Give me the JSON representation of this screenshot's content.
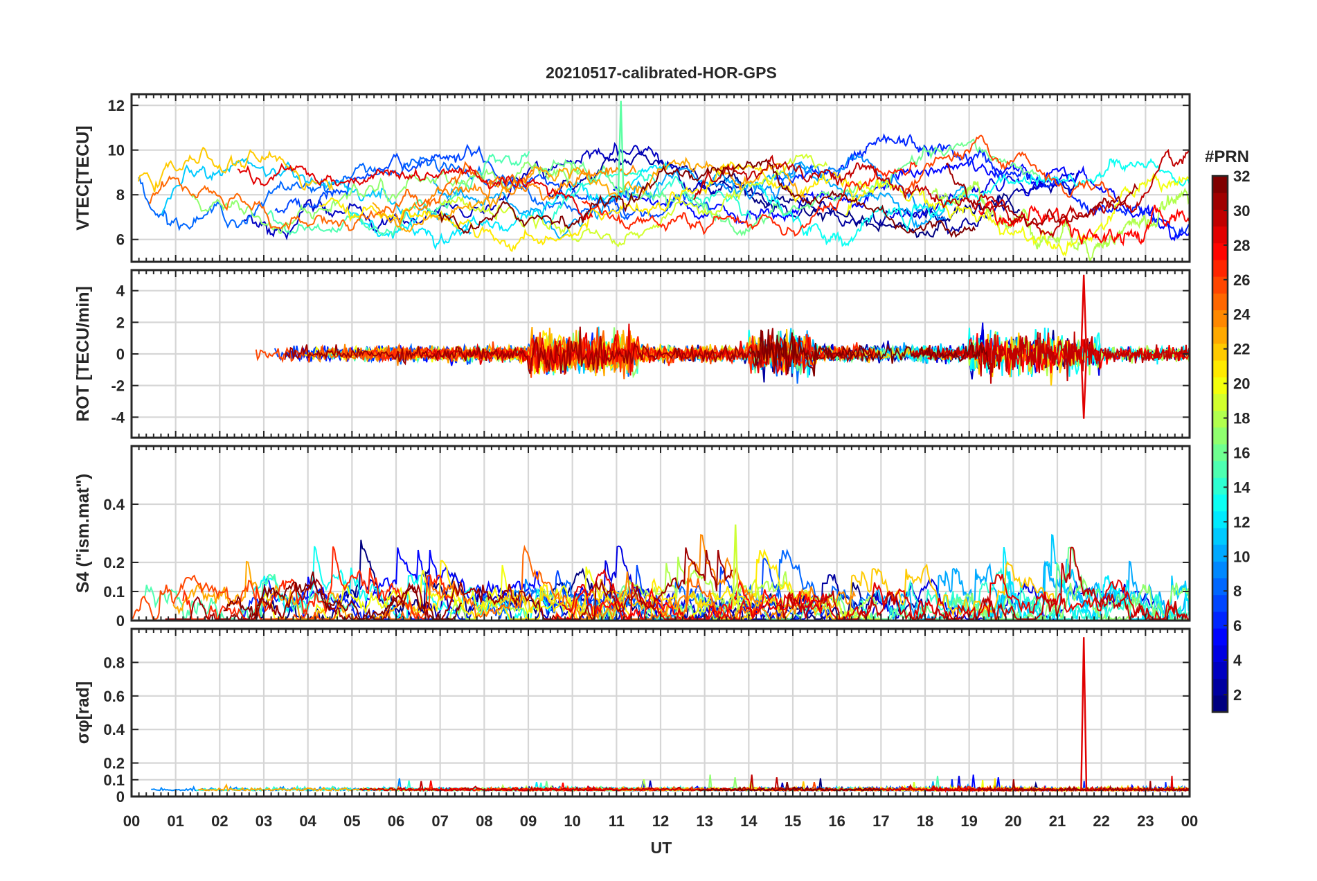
{
  "chart_data": {
    "type": "line",
    "title": "20210517-calibrated-HOR-GPS",
    "xlabel": "UT",
    "x_tick_labels": [
      "00",
      "01",
      "02",
      "03",
      "04",
      "05",
      "06",
      "07",
      "08",
      "09",
      "10",
      "11",
      "12",
      "13",
      "14",
      "15",
      "16",
      "17",
      "18",
      "19",
      "20",
      "21",
      "22",
      "23",
      "00"
    ],
    "xlim": [
      0,
      24
    ],
    "panels": [
      {
        "id": "vtec",
        "ylabel": "VTEC[TECU]",
        "ylim": [
          5,
          12.5
        ],
        "yticks": [
          6,
          8,
          10,
          12
        ],
        "ytick_labels": [
          "6",
          "8",
          "10",
          "12"
        ],
        "baseline": 8,
        "spread": 1.3
      },
      {
        "id": "rot",
        "ylabel": "ROT [TECU/min]",
        "ylim": [
          -5.3,
          5.3
        ],
        "yticks": [
          -4,
          -2,
          0,
          2,
          4
        ],
        "ytick_labels": [
          "-4",
          "-2",
          "0",
          "2",
          "4"
        ],
        "baseline": 0,
        "spread": 0.5
      },
      {
        "id": "s4",
        "ylabel": "S4 (\"ism.mat\")",
        "ylim": [
          0,
          0.6
        ],
        "yticks": [
          0,
          0.1,
          0.2,
          0.4
        ],
        "ytick_labels": [
          "0",
          "0.1",
          "0.2",
          "0.4"
        ],
        "baseline": 0.04,
        "spread": 0.05
      },
      {
        "id": "sigma",
        "ylabel": "σφ[rad]",
        "ylim": [
          0,
          1.0
        ],
        "yticks": [
          0,
          0.1,
          0.2,
          0.4,
          0.6,
          0.8
        ],
        "ytick_labels": [
          "0",
          "0.1",
          "0.2",
          "0.4",
          "0.6",
          "0.8"
        ],
        "baseline": 0.04,
        "spread": 0.02
      }
    ],
    "colorbar": {
      "title": "#PRN",
      "range": [
        1,
        32
      ],
      "tick_labels": [
        "2",
        "4",
        "6",
        "8",
        "10",
        "12",
        "14",
        "16",
        "18",
        "20",
        "22",
        "24",
        "26",
        "28",
        "30",
        "32"
      ],
      "colormap": "jet"
    },
    "highlights": [
      {
        "panel": "vtec",
        "description": "peak near 12.2 TECU",
        "x": 11.1,
        "y": 12.2
      },
      {
        "panel": "rot",
        "description": "max spike",
        "x": 21.6,
        "y": 5.0
      },
      {
        "panel": "rot",
        "description": "min spike",
        "x": 21.6,
        "y": -4.1
      },
      {
        "panel": "s4",
        "description": "max S4",
        "x": 13.7,
        "y": 0.33
      },
      {
        "panel": "sigma",
        "description": "max phase scintillation",
        "x": 21.6,
        "y": 0.95
      }
    ],
    "series_count": 32
  }
}
